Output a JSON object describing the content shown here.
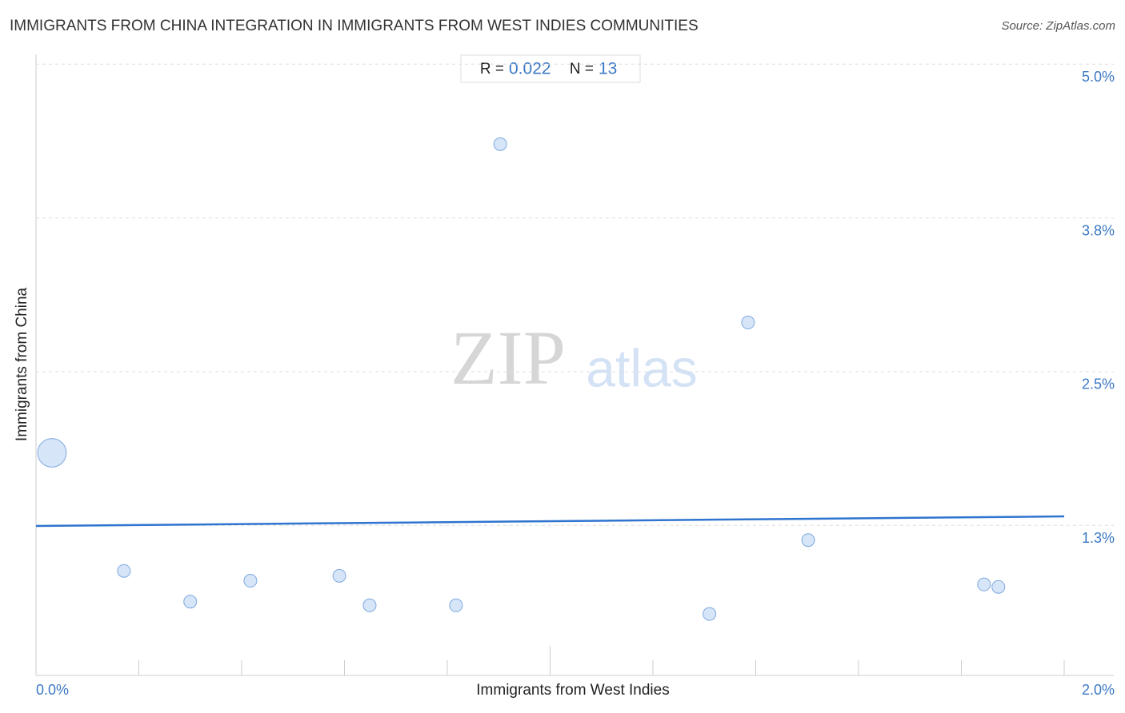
{
  "chart_data": {
    "type": "scatter",
    "title": "IMMIGRANTS FROM CHINA INTEGRATION IN IMMIGRANTS FROM WEST INDIES COMMUNITIES",
    "source": "Source: ZipAtlas.com",
    "x_label": "Immigrants from West Indies",
    "y_label": "Immigrants from China",
    "stats": {
      "r_label": "R =",
      "r": 0.022,
      "n_label": "N =",
      "n": 13
    },
    "watermark": [
      "ZIP",
      "atlas"
    ],
    "xlim": [
      0,
      2.0
    ],
    "ylim": [
      0.03,
      5.08
    ],
    "xticks": [
      {
        "value": 0,
        "label": "0.0%"
      },
      {
        "value": 0.2,
        "label": null
      },
      {
        "value": 0.4,
        "label": null
      },
      {
        "value": 0.6,
        "label": null
      },
      {
        "value": 0.8,
        "label": null
      },
      {
        "value": 1.0,
        "label": null
      },
      {
        "value": 1.2,
        "label": null
      },
      {
        "value": 1.4,
        "label": null
      },
      {
        "value": 1.6,
        "label": null
      },
      {
        "value": 1.8,
        "label": null
      },
      {
        "value": 2.0,
        "label": "2.0%"
      }
    ],
    "yticks": [
      {
        "value": 1.25,
        "label": "1.3%"
      },
      {
        "value": 2.5,
        "label": "2.5%"
      },
      {
        "value": 3.75,
        "label": "3.8%"
      },
      {
        "value": 5.0,
        "label": "5.0%"
      }
    ],
    "grid": true,
    "color": "#cfe0f7",
    "edge_color": "#7ea9e0",
    "series": [
      {
        "x": [
          0.031,
          0.171,
          0.3,
          0.417,
          0.59,
          0.649,
          0.817,
          0.903,
          1.31,
          1.385,
          1.502,
          1.844,
          1.872
        ],
        "values": [
          1.84,
          0.88,
          0.63,
          0.8,
          0.84,
          0.6,
          0.6,
          4.35,
          0.53,
          2.9,
          1.13,
          0.77,
          0.75
        ],
        "sizes": [
          5,
          1,
          1,
          1,
          1,
          1,
          1,
          1,
          1,
          1,
          1,
          1,
          1
        ]
      }
    ],
    "trendline": {
      "x": [
        0,
        2.0
      ],
      "y": [
        1.245,
        1.323
      ],
      "color": "#2f74cf"
    }
  }
}
